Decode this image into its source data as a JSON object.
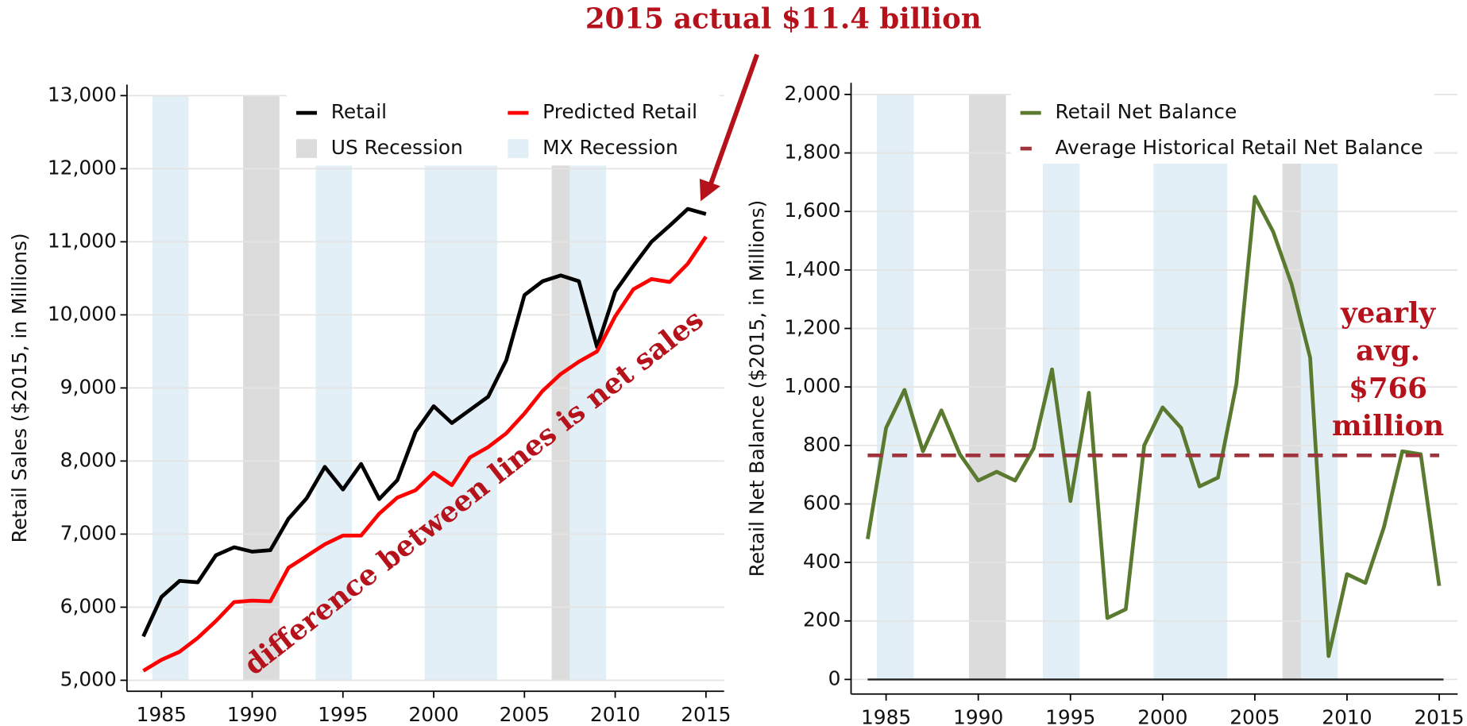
{
  "chart_data": [
    {
      "type": "line",
      "y_label": "Retail Sales ($2015, in Millions)",
      "annotation": "2015 actual $11.4 billion",
      "annotation2": "difference between lines is net sales",
      "x": [
        1984,
        1985,
        1986,
        1987,
        1988,
        1989,
        1990,
        1991,
        1992,
        1993,
        1994,
        1995,
        1996,
        1997,
        1998,
        1999,
        2000,
        2001,
        2002,
        2003,
        2004,
        2005,
        2006,
        2007,
        2008,
        2009,
        2010,
        2011,
        2012,
        2013,
        2014,
        2015
      ],
      "series": [
        {
          "name": "Retail",
          "color": "#000000",
          "values": [
            5600,
            6140,
            6360,
            6340,
            6710,
            6820,
            6760,
            6780,
            7210,
            7490,
            7920,
            7610,
            7960,
            7480,
            7740,
            8400,
            8750,
            8520,
            8700,
            8880,
            9380,
            10270,
            10460,
            10540,
            10460,
            9560,
            10320,
            10670,
            11000,
            11220,
            11450,
            11380
          ]
        },
        {
          "name": "Predicted Retail",
          "color": "#ff0000",
          "values": [
            5130,
            5280,
            5390,
            5580,
            5810,
            6070,
            6090,
            6080,
            6540,
            6700,
            6860,
            6980,
            6980,
            7280,
            7500,
            7600,
            7840,
            7670,
            8050,
            8190,
            8380,
            8650,
            8960,
            9190,
            9360,
            9500,
            9980,
            10350,
            10490,
            10450,
            10700,
            11070
          ]
        }
      ],
      "bands": [
        {
          "name": "US Recession",
          "color": "#dcdcdc",
          "spans": [
            [
              1989.5,
              1991.5
            ],
            [
              2006.5,
              2007.5
            ]
          ]
        },
        {
          "name": "MX Recession",
          "color": "#e2eff7",
          "spans": [
            [
              1984.5,
              1986.5
            ],
            [
              1993.5,
              1995.5
            ],
            [
              1999.5,
              2003.5
            ],
            [
              2007.5,
              2009.5
            ]
          ]
        }
      ],
      "xlim": [
        1983.1,
        2016
      ],
      "xticks": [
        1985,
        1990,
        1995,
        2000,
        2005,
        2010,
        2015
      ],
      "ylim": [
        4850,
        13150
      ],
      "yticks": [
        {
          "value": 5000,
          "label": "5,000"
        },
        {
          "value": 6000,
          "label": "6,000"
        },
        {
          "value": 7000,
          "label": "7,000"
        },
        {
          "value": 8000,
          "label": "8,000"
        },
        {
          "value": 9000,
          "label": "9,000"
        },
        {
          "value": 10000,
          "label": "10,000"
        },
        {
          "value": 11000,
          "label": "11,000"
        },
        {
          "value": 12000,
          "label": "12,000"
        },
        {
          "value": 13000,
          "label": "13,000"
        }
      ],
      "grid": true,
      "legend": "top"
    },
    {
      "type": "line",
      "y_label": "Retail Net Balance ($2015, in Millions)",
      "annotation_lines": [
        "yearly",
        "avg.",
        "$766",
        "million"
      ],
      "x": [
        1984,
        1985,
        1986,
        1987,
        1988,
        1989,
        1990,
        1991,
        1992,
        1993,
        1994,
        1995,
        1996,
        1997,
        1998,
        1999,
        2000,
        2001,
        2002,
        2003,
        2004,
        2005,
        2006,
        2007,
        2008,
        2009,
        2010,
        2011,
        2012,
        2013,
        2014,
        2015
      ],
      "series": [
        {
          "name": "Retail Net Balance",
          "color": "#5a7a30",
          "values": [
            480,
            860,
            990,
            780,
            920,
            770,
            680,
            710,
            680,
            790,
            1060,
            610,
            980,
            210,
            240,
            800,
            930,
            860,
            660,
            690,
            1010,
            1650,
            1530,
            1350,
            1100,
            80,
            360,
            330,
            520,
            780,
            770,
            320
          ]
        },
        {
          "name": "Average Historical Retail Net Balance",
          "color": "#a0343c",
          "dashed": true,
          "value": 766
        }
      ],
      "bands": [
        {
          "color": "#dcdcdc",
          "spans": [
            [
              1989.5,
              1991.5
            ],
            [
              2006.5,
              2007.5
            ]
          ]
        },
        {
          "color": "#e2eff7",
          "spans": [
            [
              1984.5,
              1986.5
            ],
            [
              1993.5,
              1995.5
            ],
            [
              1999.5,
              2003.5
            ],
            [
              2007.5,
              2009.5
            ]
          ]
        }
      ],
      "xlim": [
        1983.1,
        2016
      ],
      "xticks": [
        1985,
        1990,
        1995,
        2000,
        2005,
        2010,
        2015
      ],
      "ylim": [
        -50,
        2040
      ],
      "yticks": [
        0,
        200,
        400,
        600,
        800,
        {
          "value": 1000,
          "label": "1,000"
        },
        {
          "value": 1200,
          "label": "1,200"
        },
        {
          "value": 1400,
          "label": "1,400"
        },
        {
          "value": 1600,
          "label": "1,600"
        },
        {
          "value": 1800,
          "label": "1,800"
        },
        {
          "value": 2000,
          "label": "2,000"
        }
      ],
      "grid": true,
      "legend": "top"
    }
  ]
}
